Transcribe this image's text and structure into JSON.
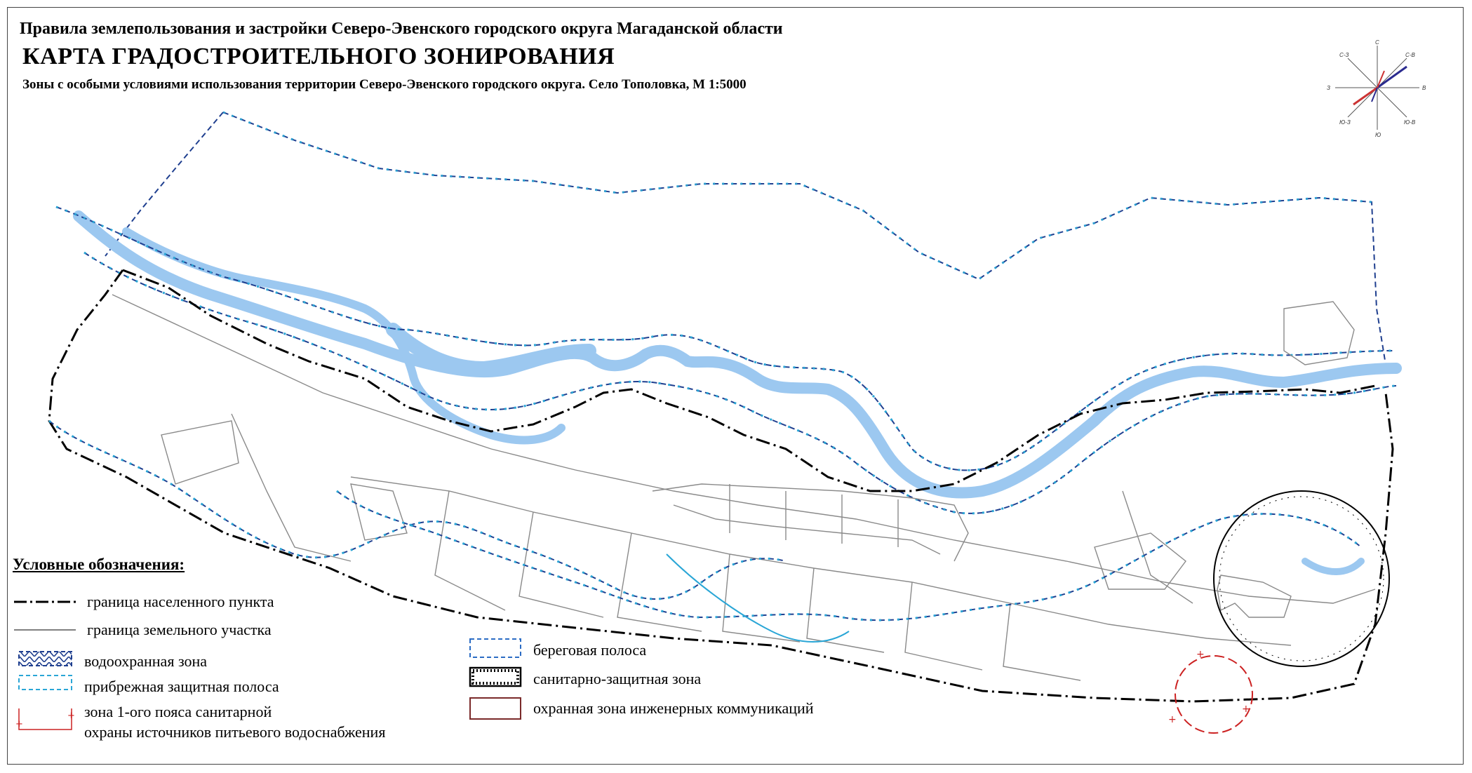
{
  "header": {
    "rules_title": "Правила землепользования и застройки Северо-Эвенского городского округа Магаданской области",
    "map_title": "КАРТА ГРАДОСТРОИТЕЛЬНОГО ЗОНИРОВАНИЯ",
    "subtitle": "Зоны с особыми условиями использования территории Северо-Эвенского городского округа. Село Тополовка, М 1:5000"
  },
  "compass": {
    "n": "С",
    "s": "Ю",
    "e": "В",
    "w": "З",
    "ne": "С-В",
    "nw": "С-З",
    "se": "Ю-В",
    "sw": "Ю-З"
  },
  "legend": {
    "title": "Условные обозначения:",
    "items": [
      {
        "label": "граница населенного пункта"
      },
      {
        "label": "граница земельного участка"
      },
      {
        "label": "водоохранная зона"
      },
      {
        "label": "прибрежная защитная полоса"
      },
      {
        "label": "зона 1-ого пояса санитарной"
      },
      {
        "label": "охраны источников питьевого водоснабжения"
      },
      {
        "label": "береговая полоса"
      },
      {
        "label": "санитарно-защитная зона"
      },
      {
        "label": "охранная зона инженерных коммуникаций"
      }
    ]
  },
  "colors": {
    "river": "#9cc8f0",
    "water_protection_zone": "#1f3f8f",
    "coastal_protective_strip": "#2aa6d6",
    "coastal_strip": "#2b6cc4",
    "sanitary_zone_1": "#cc2222",
    "utility_zone": "#7a2a2a",
    "parcel_boundary": "#8a8a8a"
  }
}
